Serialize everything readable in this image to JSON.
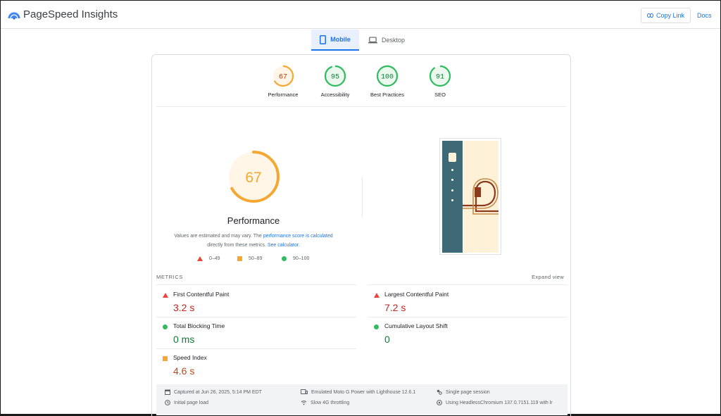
{
  "header": {
    "title": "PageSpeed Insights",
    "copy_label": "Copy Link",
    "docs_label": "Docs"
  },
  "tabs": [
    {
      "label": "Mobile",
      "selected": true
    },
    {
      "label": "Desktop",
      "selected": false
    }
  ],
  "categories": [
    {
      "score": "67",
      "label": "Performance",
      "color": "#f4a733",
      "fill": 0.67
    },
    {
      "score": "95",
      "label": "Accessibility",
      "color": "#2fbb5e",
      "fill": 0.95
    },
    {
      "score": "100",
      "label": "Best Practices",
      "color": "#2fbb5e",
      "fill": 1.0
    },
    {
      "score": "91",
      "label": "SEO",
      "color": "#2fbb5e",
      "fill": 0.91
    }
  ],
  "performance": {
    "score": "67",
    "label": "Performance",
    "note_a": "Values are estimated and may vary. The ",
    "note_link1": "performance score is calculated",
    "note_b": " directly from these metrics. ",
    "note_link2": "See calculator.",
    "legend": [
      {
        "range": "0–49"
      },
      {
        "range": "50–89"
      },
      {
        "range": "90–100"
      }
    ]
  },
  "metrics": {
    "heading": "METRICS",
    "expand_label": "Expand view",
    "items": [
      {
        "name": "First Contentful Paint",
        "value": "3.2 s",
        "status": "poor"
      },
      {
        "name": "Largest Contentful Paint",
        "value": "7.2 s",
        "status": "poor"
      },
      {
        "name": "Total Blocking Time",
        "value": "0 ms",
        "status": "good"
      },
      {
        "name": "Cumulative Layout Shift",
        "value": "0",
        "status": "good"
      },
      {
        "name": "Speed Index",
        "value": "4.6 s",
        "status": "average"
      }
    ]
  },
  "footer": {
    "captured": "Captured at Jun 26, 2025, 5:14 PM EDT",
    "load": "Initial page load",
    "device": "Emulated Moto G Power with Lighthouse 12.6.1",
    "throttle": "Slow 4G throttling",
    "session": "Single page session",
    "browser": "Using HeadlessChromium 137.0.7151.119 with lr"
  }
}
